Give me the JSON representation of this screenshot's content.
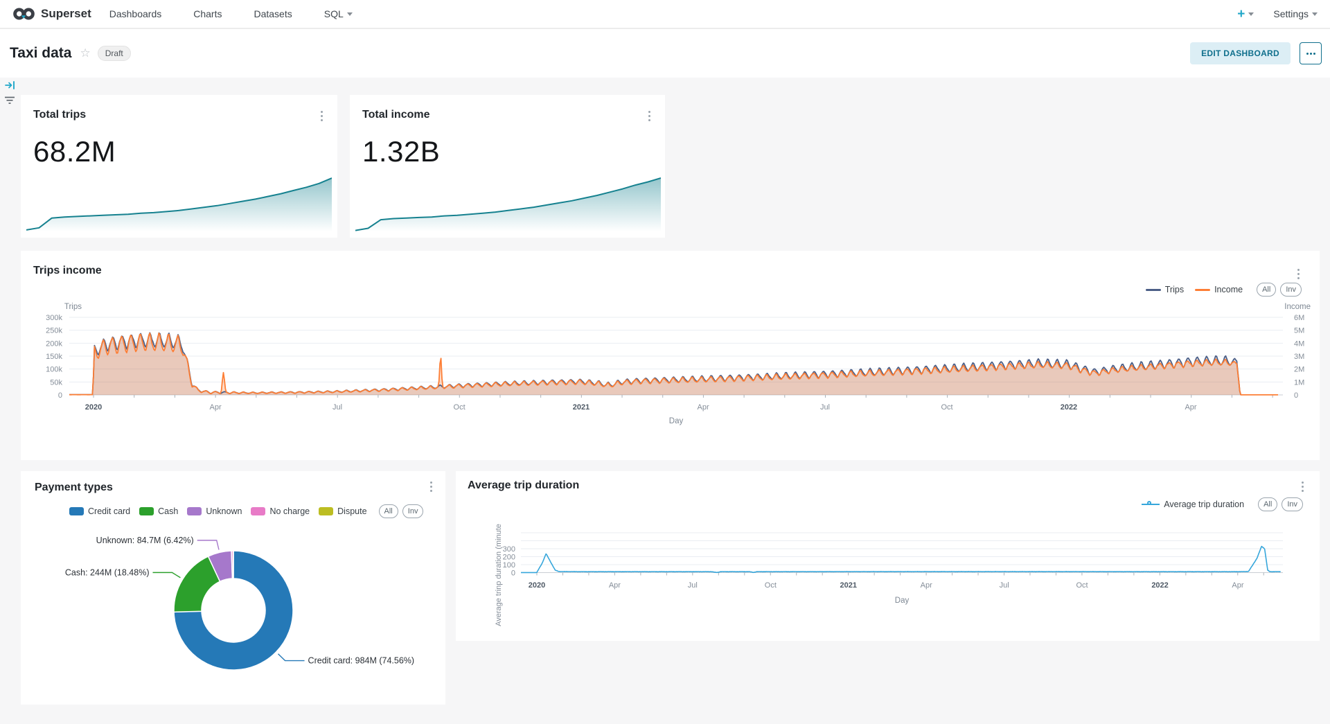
{
  "nav": {
    "brand": "Superset",
    "items": [
      "Dashboards",
      "Charts",
      "Datasets",
      "SQL"
    ],
    "plus": "+",
    "settings": "Settings"
  },
  "header": {
    "title": "Taxi data",
    "badge": "Draft",
    "edit_button": "EDIT DASHBOARD"
  },
  "pills": {
    "all": "All",
    "inv": "Inv"
  },
  "icons": {
    "expand": "arrow-to-bar",
    "filter": "filter-lines",
    "kebab": "vertical-dots",
    "star": "☆",
    "caret": "▾"
  },
  "colors": {
    "brand_teal": "#20a7c9",
    "button_teal": "#0f6f8c",
    "spark": "#15818F",
    "grid": "#e9edf2"
  },
  "chart_data": [
    {
      "id": "total_trips",
      "type": "big_number_trendline",
      "title": "Total trips",
      "value": "68.2M",
      "color": "#15818F",
      "spark": [
        4,
        8,
        26,
        28,
        29,
        30,
        31,
        32,
        33,
        35,
        36,
        38,
        40,
        43,
        46,
        49,
        53,
        57,
        61,
        66,
        71,
        77,
        83,
        90,
        100
      ]
    },
    {
      "id": "total_income",
      "type": "big_number_trendline",
      "title": "Total income",
      "value": "1.32B",
      "color": "#15818F",
      "spark": [
        3,
        7,
        23,
        25,
        26,
        27,
        28,
        30,
        31,
        33,
        35,
        37,
        40,
        43,
        46,
        50,
        54,
        58,
        63,
        68,
        74,
        80,
        87,
        93,
        100
      ]
    },
    {
      "id": "trips_income",
      "type": "line",
      "title": "Trips income",
      "xlabel": "Day",
      "y_left": {
        "name": "Trips",
        "ticks": [
          "300k",
          "250k",
          "200k",
          "150k",
          "100k",
          "50k",
          "0"
        ],
        "max": 300
      },
      "y_right": {
        "name": "Income",
        "ticks": [
          "6M",
          "5M",
          "4M",
          "3M",
          "2M",
          "1M",
          "0"
        ],
        "max": 6000
      },
      "x_ticks": [
        {
          "label": "2020",
          "t": 0.02,
          "bold": true
        },
        {
          "label": "Apr",
          "t": 0.1205
        },
        {
          "label": "Jul",
          "t": 0.2209
        },
        {
          "label": "Oct",
          "t": 0.3214
        },
        {
          "label": "2021",
          "t": 0.4218,
          "bold": true
        },
        {
          "label": "Apr",
          "t": 0.5223
        },
        {
          "label": "Jul",
          "t": 0.6227
        },
        {
          "label": "Oct",
          "t": 0.7232
        },
        {
          "label": "2022",
          "t": 0.8236,
          "bold": true
        },
        {
          "label": "Apr",
          "t": 0.9241
        }
      ],
      "series": [
        {
          "name": "Trips",
          "color": "#4C5F87"
        },
        {
          "name": "Income",
          "color": "#FD7E35"
        }
      ],
      "gen": {
        "day_scale": 909,
        "base": [
          [
            0,
            1
          ],
          [
            0.0195,
            1
          ],
          [
            0.0206,
            168
          ],
          [
            0.03,
            196
          ],
          [
            0.045,
            206
          ],
          [
            0.06,
            212
          ],
          [
            0.075,
            211
          ],
          [
            0.088,
            206
          ],
          [
            0.093,
            196
          ],
          [
            0.097,
            128
          ],
          [
            0.101,
            45
          ],
          [
            0.106,
            18
          ],
          [
            0.115,
            10
          ],
          [
            0.15,
            8
          ],
          [
            0.19,
            10
          ],
          [
            0.221,
            13
          ],
          [
            0.26,
            20
          ],
          [
            0.3,
            30
          ],
          [
            0.3214,
            36
          ],
          [
            0.36,
            44
          ],
          [
            0.4,
            50
          ],
          [
            0.4218,
            52
          ],
          [
            0.435,
            46
          ],
          [
            0.445,
            38
          ],
          [
            0.455,
            50
          ],
          [
            0.47,
            55
          ],
          [
            0.5223,
            62
          ],
          [
            0.57,
            70
          ],
          [
            0.6227,
            80
          ],
          [
            0.67,
            90
          ],
          [
            0.7232,
            102
          ],
          [
            0.77,
            115
          ],
          [
            0.8,
            122
          ],
          [
            0.8236,
            118
          ],
          [
            0.835,
            100
          ],
          [
            0.845,
            88
          ],
          [
            0.86,
            100
          ],
          [
            0.88,
            110
          ],
          [
            0.9,
            118
          ],
          [
            0.9241,
            128
          ],
          [
            0.945,
            132
          ],
          [
            0.962,
            130
          ],
          [
            0.9648,
            0
          ],
          [
            1,
            0
          ]
        ],
        "amp": [
          [
            0,
            0
          ],
          [
            0.0195,
            0
          ],
          [
            0.0206,
            22
          ],
          [
            0.03,
            26
          ],
          [
            0.09,
            28
          ],
          [
            0.097,
            15
          ],
          [
            0.106,
            5
          ],
          [
            0.15,
            2.5
          ],
          [
            0.221,
            3.5
          ],
          [
            0.3,
            6
          ],
          [
            0.3214,
            7
          ],
          [
            0.4218,
            9
          ],
          [
            0.5223,
            11
          ],
          [
            0.6227,
            13
          ],
          [
            0.7232,
            15
          ],
          [
            0.8236,
            17
          ],
          [
            0.85,
            14
          ],
          [
            0.9241,
            18
          ],
          [
            0.958,
            18
          ],
          [
            0.963,
            0
          ],
          [
            1,
            0
          ]
        ],
        "income_ratio": 19.1,
        "income_spikes": [
          [
            0.127,
            1500,
            0.0012
          ],
          [
            0.306,
            2300,
            0.001
          ]
        ],
        "trips_end": 0.966,
        "income_end": 0.996
      }
    },
    {
      "id": "payment",
      "type": "pie",
      "title": "Payment types",
      "slices": [
        {
          "label": "Credit card",
          "value": 74.56,
          "display": "Credit card: 984M (74.56%)",
          "color": "#2579B7"
        },
        {
          "label": "Cash",
          "value": 18.48,
          "display": "Cash: 244M (18.48%)",
          "color": "#2CA02C"
        },
        {
          "label": "Unknown",
          "value": 6.42,
          "display": "Unknown: 84.7M (6.42%)",
          "color": "#A678CB"
        },
        {
          "label": "No charge",
          "value": 0.45,
          "display": "",
          "color": "#E87BC7"
        },
        {
          "label": "Dispute",
          "value": 0.09,
          "display": "",
          "color": "#BCBD22"
        }
      ]
    },
    {
      "id": "avg_duration",
      "type": "line",
      "title": "Average trip duration",
      "legend": "Average trip duration",
      "xlabel": "Day",
      "ylabel": "Average trinp duration (minute",
      "color": "#36A6DB",
      "y_ticks": [
        "300",
        "200",
        "100",
        "0"
      ],
      "ylim": [
        0,
        520
      ],
      "x_ticks": [
        {
          "label": "2020",
          "t": 0.0209,
          "bold": true
        },
        {
          "label": "Apr",
          "t": 0.1231
        },
        {
          "label": "Jul",
          "t": 0.2253
        },
        {
          "label": "Oct",
          "t": 0.3276
        },
        {
          "label": "2021",
          "t": 0.4298,
          "bold": true
        },
        {
          "label": "Apr",
          "t": 0.532
        },
        {
          "label": "Jul",
          "t": 0.6342
        },
        {
          "label": "Oct",
          "t": 0.7364
        },
        {
          "label": "2022",
          "t": 0.8387,
          "bold": true
        },
        {
          "label": "Apr",
          "t": 0.9409
        }
      ],
      "gen": {
        "day_scale": 893,
        "base": [
          [
            0,
            0.5
          ],
          [
            0.019,
            0.5
          ],
          [
            0.0209,
            2
          ],
          [
            0.028,
            120
          ],
          [
            0.033,
            238
          ],
          [
            0.038,
            150
          ],
          [
            0.045,
            30
          ],
          [
            0.05,
            14
          ],
          [
            0.08,
            12
          ],
          [
            0.25,
            12
          ],
          [
            0.257,
            1
          ],
          [
            0.262,
            12
          ],
          [
            0.3,
            12
          ],
          [
            0.305,
            3
          ],
          [
            0.31,
            12
          ],
          [
            0.5,
            13
          ],
          [
            0.7,
            13
          ],
          [
            0.85,
            12
          ],
          [
            0.945,
            12
          ],
          [
            0.955,
            15
          ],
          [
            0.966,
            180
          ],
          [
            0.972,
            330
          ],
          [
            0.976,
            300
          ],
          [
            0.98,
            30
          ],
          [
            0.983,
            12
          ],
          [
            0.997,
            12
          ]
        ]
      }
    }
  ]
}
